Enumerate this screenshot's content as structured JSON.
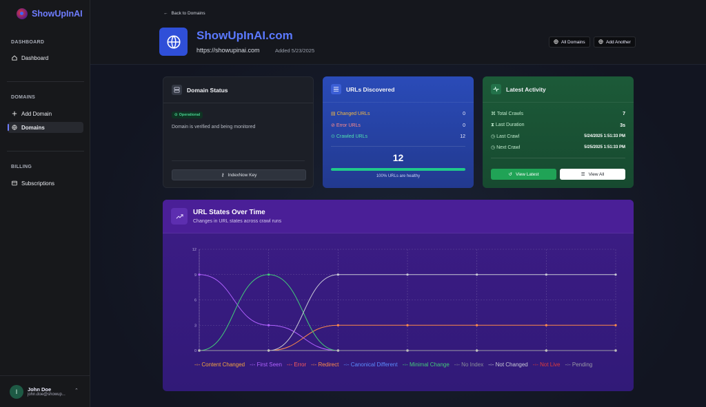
{
  "brand": {
    "name": "ShowUpInAI"
  },
  "sidebar": {
    "sections": [
      {
        "label": "DASHBOARD",
        "items": [
          {
            "label": "Dashboard",
            "icon": "home-icon"
          }
        ]
      },
      {
        "label": "DOMAINS",
        "items": [
          {
            "label": "Add Domain",
            "icon": "plus-icon"
          },
          {
            "label": "Domains",
            "icon": "globe-icon",
            "active": true
          }
        ]
      },
      {
        "label": "BILLING",
        "items": [
          {
            "label": "Subscriptions",
            "icon": "credit-card-icon"
          }
        ]
      }
    ],
    "user": {
      "initial": "I",
      "name": "John Doe",
      "email": "john.doe@showup..."
    }
  },
  "header": {
    "back_label": "Back to Domains",
    "domain_title": "ShowUpInAI.com",
    "domain_url": "https://showupinai.com",
    "added": "Added 5/23/2025",
    "all_domains_label": "All Domains",
    "add_another_label": "Add Another"
  },
  "status_card": {
    "title": "Domain Status",
    "badge": "Operational",
    "description": "Domain is verified and being monitored",
    "button": "IndexNow Key"
  },
  "urls_card": {
    "title": "URLs Discovered",
    "rows": [
      {
        "label": "Changed URLs",
        "value": "0",
        "color": "#f5b942"
      },
      {
        "label": "Error URLs",
        "value": "0",
        "color": "#ff7a7a"
      },
      {
        "label": "Crawled URLs",
        "value": "12",
        "color": "#4fe0b0"
      }
    ],
    "total": "12",
    "healthy_fraction": 1.0,
    "healthy_label": "100% URLs are healthy"
  },
  "activity_card": {
    "title": "Latest Activity",
    "rows": [
      {
        "label": "Total Crawls",
        "value": "7"
      },
      {
        "label": "Last Duration",
        "value": "3s"
      },
      {
        "label": "Last Crawl",
        "value": "5/24/2025 1:51:33 PM"
      },
      {
        "label": "Next Crawl",
        "value": "5/25/2025 1:51:33 PM"
      }
    ],
    "view_latest": "View Latest",
    "view_all": "View All"
  },
  "chart_card": {
    "title": "URL States Over Time",
    "subtitle": "Changes in URL states across crawl runs"
  },
  "chart_data": {
    "type": "line",
    "title": "URL States Over Time",
    "x": [
      1,
      2,
      3,
      4,
      5,
      6,
      7
    ],
    "ylim": [
      0,
      12
    ],
    "yticks": [
      "0",
      "3",
      "6",
      "9",
      "12"
    ],
    "grid": true,
    "legend_position": "bottom",
    "series": [
      {
        "name": "Content Changed",
        "color": "#f4a340",
        "values": [
          0,
          0,
          0,
          0,
          0,
          0,
          0
        ]
      },
      {
        "name": "First Seen",
        "color": "#b061ff",
        "values": [
          9,
          3,
          0,
          0,
          0,
          0,
          0
        ]
      },
      {
        "name": "Error",
        "color": "#ff5a5a",
        "values": [
          0,
          0,
          0,
          0,
          0,
          0,
          0
        ]
      },
      {
        "name": "Redirect",
        "color": "#ff8a4a",
        "values": [
          0,
          0,
          3,
          3,
          3,
          3,
          3
        ]
      },
      {
        "name": "Canonical Different",
        "color": "#5b8cff",
        "values": [
          0,
          0,
          0,
          0,
          0,
          0,
          0
        ]
      },
      {
        "name": "Minimal Change",
        "color": "#43c97a",
        "values": [
          0,
          9,
          0,
          0,
          0,
          0,
          0
        ]
      },
      {
        "name": "No Index",
        "color": "#8a8f9a",
        "values": [
          0,
          0,
          0,
          0,
          0,
          0,
          0
        ]
      },
      {
        "name": "Not Changed",
        "color": "#c8c9d6",
        "values": [
          0,
          0,
          9,
          9,
          9,
          9,
          9
        ]
      },
      {
        "name": "Not Live",
        "color": "#e03a3a",
        "values": [
          0,
          0,
          0,
          0,
          0,
          0,
          0
        ]
      },
      {
        "name": "Pending",
        "color": "#9a9aa6",
        "values": [
          0,
          0,
          0,
          0,
          0,
          0,
          0
        ]
      }
    ]
  }
}
